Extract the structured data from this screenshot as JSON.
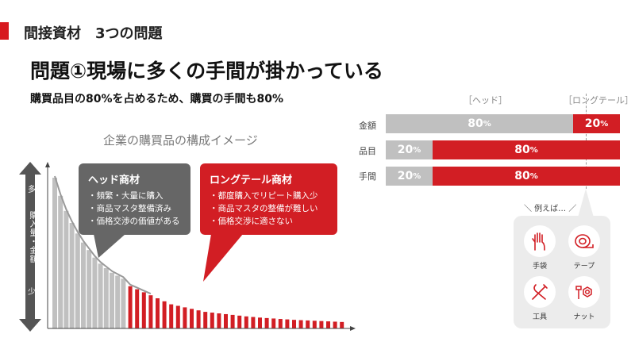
{
  "header": {
    "section_title": "間接資材　3つの問題",
    "headline": "問題①現場に多くの手間が掛かっている",
    "subhead": "購買品目の80%を占めるため、購買の手間も80%"
  },
  "chart_title": "企業の購買品の構成イメージ",
  "side_axis": {
    "top": "多",
    "middle": "購入量・金額",
    "bottom": "少"
  },
  "head_callout": {
    "title": "ヘッド商材",
    "items": [
      "・頻繁・大量に購入",
      "・商品マスタ整備済み",
      "・価格交渉の価値がある"
    ]
  },
  "tail_callout": {
    "title": "ロングテール商材",
    "items": [
      "・都度購入でリピート購入少",
      "・商品マスタの整備が難しい",
      "・価格交渉に適さない"
    ]
  },
  "stacked_headers": {
    "head": "［ヘッド］",
    "tail": "［ロングテール］"
  },
  "stacked_rows": [
    {
      "label": "金額",
      "head_pct": 80,
      "tail_pct": 20,
      "head_text": "80",
      "tail_text": "20",
      "unit": "%"
    },
    {
      "label": "品目",
      "head_pct": 20,
      "tail_pct": 80,
      "head_text": "20",
      "tail_text": "80",
      "unit": "%"
    },
    {
      "label": "手間",
      "head_pct": 20,
      "tail_pct": 80,
      "head_text": "20",
      "tail_text": "80",
      "unit": "%"
    }
  ],
  "examples": {
    "label": "＼ 例えば… ／",
    "items": [
      {
        "name": "手袋",
        "icon": "glove-icon"
      },
      {
        "name": "テープ",
        "icon": "tape-icon"
      },
      {
        "name": "工具",
        "icon": "tools-icon"
      },
      {
        "name": "ナット",
        "icon": "nut-bolt-icon"
      }
    ]
  },
  "colors": {
    "accent": "#d21e24",
    "head": "#c0c0c0",
    "callout_gray": "#666666"
  },
  "chart_data": {
    "type": "bar",
    "head_values": [
      100,
      88,
      78,
      70,
      63,
      57,
      52,
      47,
      43,
      40,
      37,
      35,
      33
    ],
    "tail_values": [
      28,
      26,
      24,
      22,
      20,
      18,
      16,
      15,
      14,
      13,
      12,
      11,
      10.5,
      10,
      9.5,
      9,
      8.5,
      8,
      7.6,
      7.2,
      6.9,
      6.6,
      6.3,
      6,
      5.7,
      5.5,
      5.3,
      5.1,
      4.9,
      4.7,
      4.5,
      4.3
    ],
    "ylim": [
      0,
      100
    ]
  }
}
